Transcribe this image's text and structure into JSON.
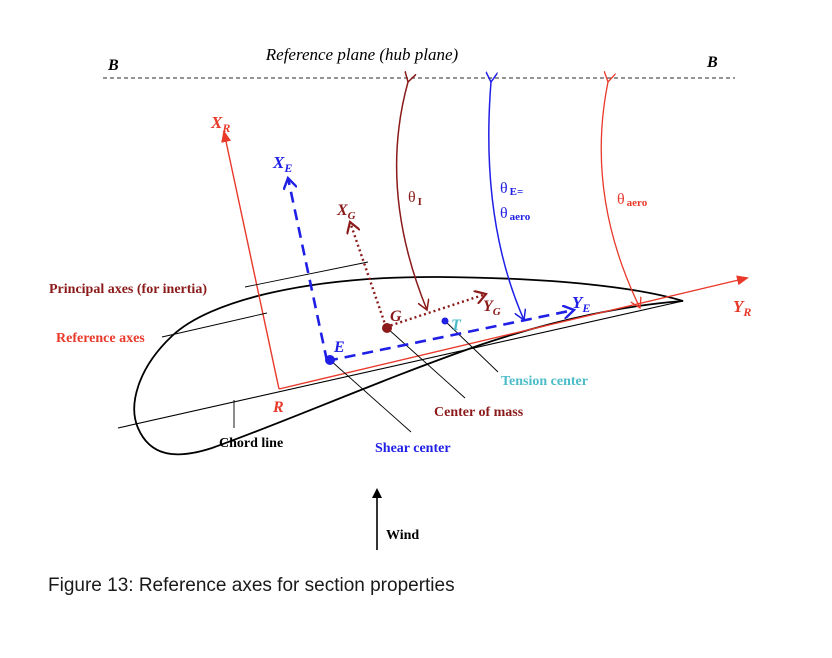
{
  "colors": {
    "reference": "#e8392a",
    "elastic": "#1f1fe6",
    "gravity": "#8b1a1a",
    "tension": "#4bbcc8",
    "ink": "#000000",
    "dash": "#555555"
  },
  "labels": {
    "hub_plane": "Reference plane (hub plane)",
    "b_left": "B",
    "b_right": "B",
    "xr_main": "X",
    "xr_sub": "R",
    "yr_main": "Y",
    "yr_sub": "R",
    "xe_main": "X",
    "xe_sub": "E",
    "ye_main": "Y",
    "ye_sub": "E",
    "xg_main": "X",
    "xg_sub": "G",
    "yg_main": "Y",
    "yg_sub": "G",
    "theta_i": "θ",
    "theta_i_sub": "I",
    "theta_e_line1": "θ",
    "theta_e_line1_sub": "E=",
    "theta_e_line2": "θ",
    "theta_e_line2_sub": "aero",
    "theta_aero": "θ",
    "theta_aero_sub": "aero",
    "principal_axes": "Principal axes (for inertia)",
    "reference_axes": "Reference axes",
    "chord_line": "Chord line",
    "point_r": "R",
    "point_e": "E",
    "point_g": "G",
    "point_t": "T",
    "tension_center": "Tension center",
    "center_of_mass": "Center of mass",
    "shear_center": "Shear center",
    "wind": "Wind"
  },
  "caption": "Figure 13: Reference axes for section properties"
}
